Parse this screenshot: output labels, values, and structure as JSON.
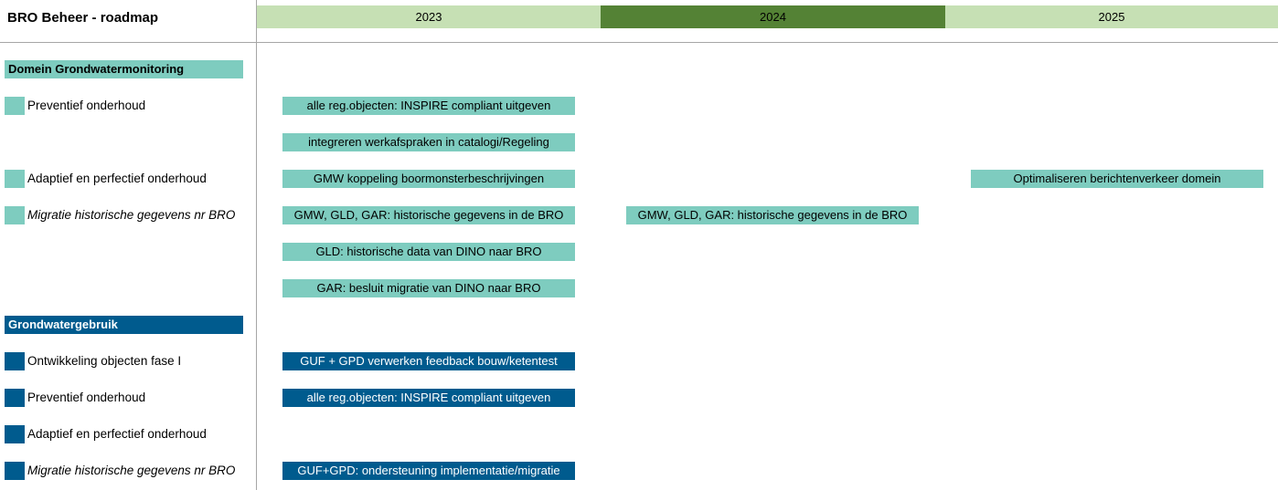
{
  "title": "BRO Beheer - roadmap",
  "colors": {
    "teal": "#7ECCBF",
    "blue": "#005B8E",
    "year_light": "#C6E0B4",
    "year_dark": "#548235"
  },
  "years": [
    {
      "label": "2023",
      "style": "light"
    },
    {
      "label": "2024",
      "style": "dark"
    },
    {
      "label": "2025",
      "style": "light"
    }
  ],
  "sections": [
    {
      "name": "Domein Grondwatermonitoring",
      "color": "teal",
      "rows": [
        {
          "label": "Preventief onderhoud",
          "italic": false,
          "items": [
            {
              "year": "2023",
              "text": "alle reg.objecten: INSPIRE compliant uitgeven"
            }
          ]
        },
        {
          "label": "",
          "items": [
            {
              "year": "2023",
              "text": "integreren werkafspraken in catalogi/Regeling"
            }
          ]
        },
        {
          "label": "Adaptief en perfectief onderhoud",
          "italic": false,
          "items": [
            {
              "year": "2023",
              "text": "GMW koppeling boormonsterbeschrijvingen"
            },
            {
              "year": "2025",
              "text": "Optimaliseren berichtenverkeer domein"
            }
          ]
        },
        {
          "label": "Migratie historische gegevens nr BRO",
          "italic": true,
          "items": [
            {
              "year": "2023",
              "text": "GMW, GLD, GAR: historische gegevens in de BRO"
            },
            {
              "year": "2024",
              "text": "GMW, GLD, GAR: historische gegevens in de BRO"
            }
          ]
        },
        {
          "label": "",
          "items": [
            {
              "year": "2023",
              "text": "GLD: historische data van DINO naar BRO"
            }
          ]
        },
        {
          "label": "",
          "items": [
            {
              "year": "2023",
              "text": "GAR: besluit migratie van DINO naar BRO"
            }
          ]
        }
      ]
    },
    {
      "name": "Grondwatergebruik",
      "color": "blue",
      "rows": [
        {
          "label": "Ontwikkeling objecten fase I",
          "italic": false,
          "items": [
            {
              "year": "2023",
              "text": "GUF + GPD verwerken feedback bouw/ketentest"
            }
          ]
        },
        {
          "label": "Preventief onderhoud",
          "italic": false,
          "items": [
            {
              "year": "2023",
              "text": "alle reg.objecten: INSPIRE compliant uitgeven"
            }
          ]
        },
        {
          "label": "Adaptief en perfectief onderhoud",
          "italic": false,
          "items": []
        },
        {
          "label": "Migratie historische gegevens nr BRO",
          "italic": true,
          "items": [
            {
              "year": "2023",
              "text": "GUF+GPD: ondersteuning implementatie/migratie"
            }
          ]
        }
      ]
    }
  ]
}
